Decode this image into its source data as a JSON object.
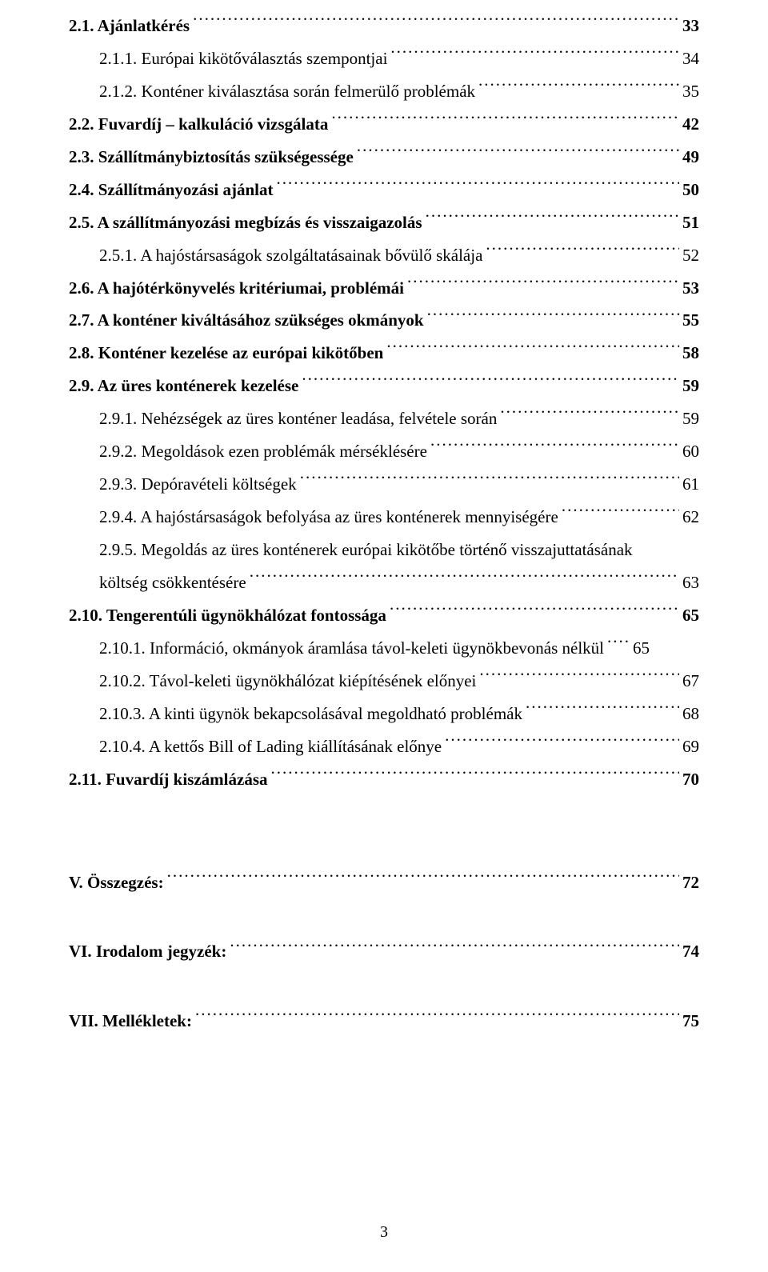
{
  "toc": {
    "items": [
      {
        "label": "2.1. Ajánlatkérés",
        "page": "33",
        "indent": 1,
        "bold": true
      },
      {
        "label": "2.1.1. Európai kikötőválasztás szempontjai",
        "page": "34",
        "indent": 2,
        "bold": false
      },
      {
        "label": "2.1.2. Konténer kiválasztása során felmerülő problémák",
        "page": "35",
        "indent": 2,
        "bold": false
      },
      {
        "label": "2.2. Fuvardíj – kalkuláció vizsgálata",
        "page": "42",
        "indent": 1,
        "bold": true
      },
      {
        "label": "2.3. Szállítmánybiztosítás szükségessége",
        "page": "49",
        "indent": 1,
        "bold": true
      },
      {
        "label": "2.4. Szállítmányozási ajánlat",
        "page": "50",
        "indent": 1,
        "bold": true
      },
      {
        "label": "2.5. A szállítmányozási megbízás és visszaigazolás",
        "page": "51",
        "indent": 1,
        "bold": true
      },
      {
        "label": "2.5.1. A hajóstársaságok szolgáltatásainak bővülő skálája",
        "page": "52",
        "indent": 2,
        "bold": false
      },
      {
        "label": "2.6. A hajótérkönyvelés kritériumai, problémái",
        "page": "53",
        "indent": 1,
        "bold": true
      },
      {
        "label": "2.7. A konténer kiváltásához szükséges okmányok",
        "page": "55",
        "indent": 1,
        "bold": true
      },
      {
        "label": "2.8. Konténer kezelése az európai kikötőben",
        "page": "58",
        "indent": 1,
        "bold": true
      },
      {
        "label": "2.9. Az üres konténerek kezelése",
        "page": "59",
        "indent": 1,
        "bold": true
      },
      {
        "label": "2.9.1. Nehézségek az üres konténer leadása, felvétele során",
        "page": "59",
        "indent": 2,
        "bold": false
      },
      {
        "label": "2.9.2. Megoldások ezen problémák mérséklésére",
        "page": "60",
        "indent": 2,
        "bold": false
      },
      {
        "label": "2.9.3. Depóravételi költségek",
        "page": "61",
        "indent": 2,
        "bold": false
      },
      {
        "label": "2.9.4. A hajóstársaságok befolyása az üres konténerek mennyiségére",
        "page": "62",
        "indent": 2,
        "bold": false
      },
      {
        "label_first": "2.9.5. Megoldás az üres konténerek európai kikötőbe történő visszajuttatásának",
        "label_second": "költség csökkentésére",
        "page": "63",
        "indent": 2,
        "bold": false,
        "wrap": true
      },
      {
        "label": "2.10. Tengerentúli ügynökhálózat fontossága",
        "page": "65",
        "indent": 1,
        "bold": true
      },
      {
        "label": "2.10.1. Információ, okmányok áramlása távol-keleti ügynökbevonás nélkül",
        "page": "65",
        "indent": 2,
        "bold": false,
        "short_leader": true
      },
      {
        "label": "2.10.2. Távol-keleti ügynökhálózat kiépítésének előnyei ",
        "page": "67",
        "indent": 2,
        "bold": false
      },
      {
        "label": "2.10.3. A kinti ügynök bekapcsolásával megoldható problémák",
        "page": "68",
        "indent": 2,
        "bold": false
      },
      {
        "label": "2.10.4. A kettős Bill of Lading kiállításának előnye",
        "page": "69",
        "indent": 2,
        "bold": false
      },
      {
        "label": "2.11. Fuvardíj kiszámlázása",
        "page": "70",
        "indent": 1,
        "bold": true
      }
    ],
    "sections": [
      {
        "label": "V. Összegzés:",
        "page": "72"
      },
      {
        "label": "VI. Irodalom jegyzék:",
        "page": "74"
      },
      {
        "label": "VII. Mellékletek:",
        "page": "75"
      }
    ]
  },
  "footer": {
    "page_number": "3"
  }
}
